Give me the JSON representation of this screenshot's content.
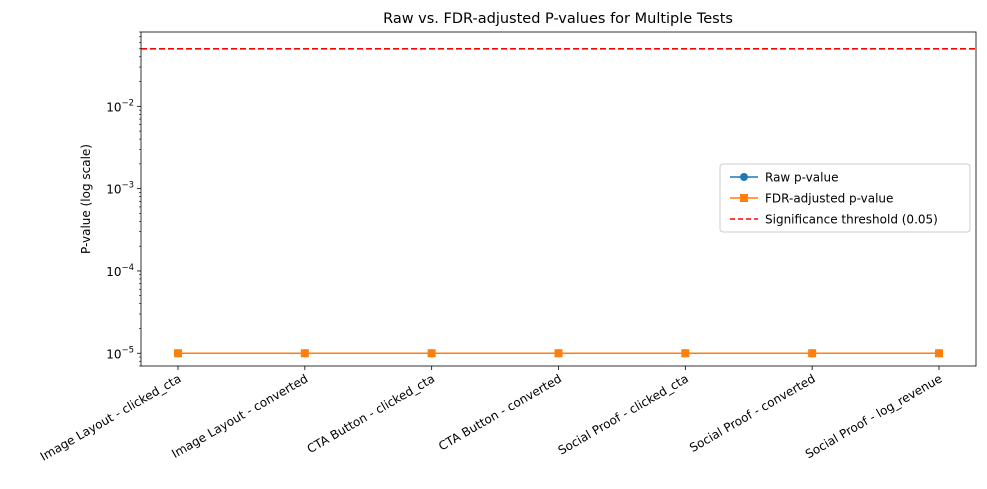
{
  "chart_data": {
    "type": "line",
    "title": "Raw vs. FDR-adjusted P-values for Multiple Tests",
    "xlabel": "",
    "ylabel": "P-value (log scale)",
    "yscale": "log",
    "ylim": [
      7e-06,
      0.08
    ],
    "yticks": [
      {
        "value": 1e-05,
        "base": "10",
        "exp": "−5"
      },
      {
        "value": 0.0001,
        "base": "10",
        "exp": "−4"
      },
      {
        "value": 0.001,
        "base": "10",
        "exp": "−3"
      },
      {
        "value": 0.01,
        "base": "10",
        "exp": "−2"
      }
    ],
    "categories": [
      "Image Layout - clicked_cta",
      "Image Layout - converted",
      "CTA Button - clicked_cta",
      "CTA Button - converted",
      "Social Proof - clicked_cta",
      "Social Proof - converted",
      "Social Proof - log_revenue"
    ],
    "series": [
      {
        "name": "Raw p-value",
        "color": "#1f77b4",
        "marker": "circle",
        "values": [
          1e-05,
          1e-05,
          1e-05,
          1e-05,
          1e-05,
          1e-05,
          1e-05
        ]
      },
      {
        "name": "FDR-adjusted p-value",
        "color": "#ff7f0e",
        "marker": "square",
        "values": [
          1e-05,
          1e-05,
          1e-05,
          1e-05,
          1e-05,
          1e-05,
          1e-05
        ]
      }
    ],
    "threshold": {
      "name": "Significance threshold (0.05)",
      "value": 0.05,
      "color": "#ff0000",
      "style": "dashed"
    },
    "legend_position": "center-right",
    "grid": false
  }
}
